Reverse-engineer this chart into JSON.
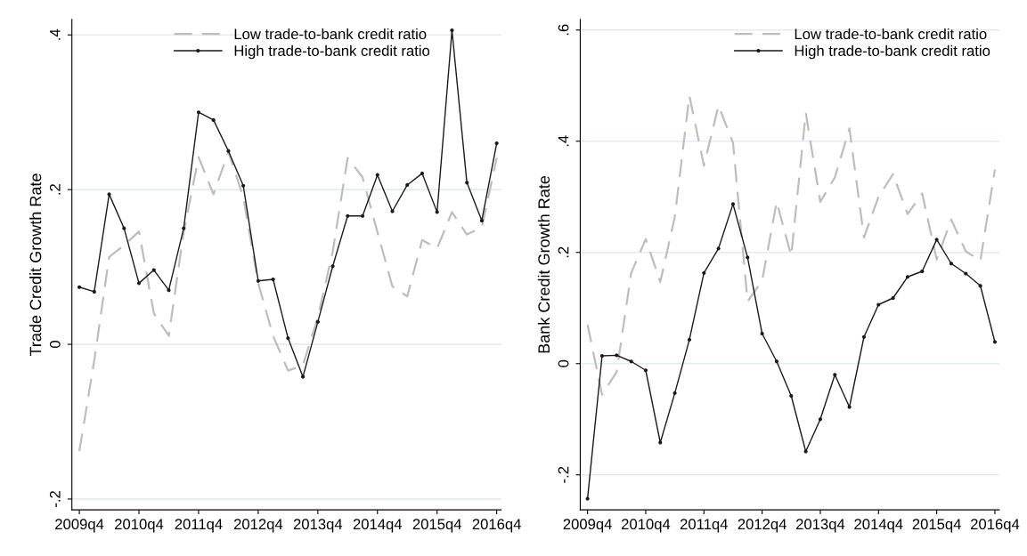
{
  "chart_data": [
    {
      "type": "line",
      "ylabel": "Trade Credit Growth Rate",
      "categories": [
        "2009q4",
        null,
        null,
        null,
        "2010q4",
        null,
        null,
        null,
        "2011q4",
        null,
        null,
        null,
        "2012q4",
        null,
        null,
        null,
        "2013q4",
        null,
        null,
        null,
        "2014q4",
        null,
        null,
        null,
        "2015q4",
        null,
        null,
        null,
        "2016q4"
      ],
      "series": [
        {
          "name": "Low trade-to-bank credit ratio",
          "color": "#bdbdbd",
          "line_style": "dashed",
          "marker": "none",
          "values": [
            -0.138,
            -0.021,
            0.113,
            0.128,
            0.146,
            0.04,
            0.011,
            0.145,
            0.242,
            0.194,
            0.249,
            0.19,
            0.079,
            0.011,
            -0.034,
            -0.027,
            0.035,
            0.12,
            0.241,
            0.216,
            0.145,
            0.075,
            0.062,
            0.135,
            0.124,
            0.171,
            0.142,
            0.151,
            0.241
          ]
        },
        {
          "name": "High trade-to-bank credit ratio",
          "color": "#1a1a1a",
          "line_style": "solid",
          "marker": "circle",
          "values": [
            0.074,
            0.068,
            0.194,
            0.15,
            0.079,
            0.096,
            0.07,
            0.15,
            0.3,
            0.29,
            0.25,
            0.205,
            0.082,
            0.084,
            0.008,
            -0.042,
            0.029,
            0.101,
            0.166,
            0.166,
            0.219,
            0.172,
            0.206,
            0.221,
            0.171,
            0.406,
            0.209,
            0.16,
            0.26
          ]
        }
      ],
      "ylim": [
        -0.214,
        0.42
      ],
      "yticks": [
        {
          "value": -0.2,
          "label": "-.2"
        },
        0,
        {
          "value": 0.2,
          "label": ".2"
        },
        {
          "value": 0.4,
          "label": ".4"
        }
      ],
      "grid": "y",
      "legend": "top right"
    },
    {
      "type": "line",
      "ylabel": "Bank Credit Growth Rate",
      "categories": [
        "2009q4",
        null,
        null,
        null,
        "2010q4",
        null,
        null,
        null,
        "2011q4",
        null,
        null,
        null,
        "2012q4",
        null,
        null,
        null,
        "2013q4",
        null,
        null,
        null,
        "2014q4",
        null,
        null,
        null,
        "2015q4",
        null,
        null,
        null,
        "2016q4"
      ],
      "series": [
        {
          "name": "Low trade-to-bank credit ratio",
          "color": "#bdbdbd",
          "line_style": "dashed",
          "marker": "none",
          "values": [
            0.07,
            -0.056,
            -0.015,
            0.163,
            0.224,
            0.147,
            0.264,
            0.482,
            0.356,
            0.464,
            0.397,
            0.112,
            0.149,
            0.291,
            0.194,
            0.451,
            0.291,
            0.335,
            0.423,
            0.227,
            0.3,
            0.341,
            0.269,
            0.306,
            0.187,
            0.259,
            0.202,
            0.185,
            0.349
          ]
        },
        {
          "name": "High trade-to-bank credit ratio",
          "color": "#1a1a1a",
          "line_style": "solid",
          "marker": "circle",
          "values": [
            -0.243,
            0.014,
            0.015,
            0.004,
            -0.012,
            -0.142,
            -0.053,
            0.043,
            0.163,
            0.207,
            0.287,
            0.191,
            0.054,
            0.004,
            -0.058,
            -0.158,
            -0.1,
            -0.02,
            -0.078,
            0.048,
            0.106,
            0.118,
            0.156,
            0.166,
            0.223,
            0.18,
            0.162,
            0.14,
            0.039
          ]
        }
      ],
      "ylim": [
        -0.263,
        0.619
      ],
      "yticks": [
        {
          "value": -0.2,
          "label": "-.2"
        },
        0,
        {
          "value": 0.2,
          "label": ".2"
        },
        {
          "value": 0.4,
          "label": ".4"
        },
        {
          "value": 0.6,
          "label": ".6"
        }
      ],
      "grid": "y",
      "legend": "top right"
    }
  ]
}
